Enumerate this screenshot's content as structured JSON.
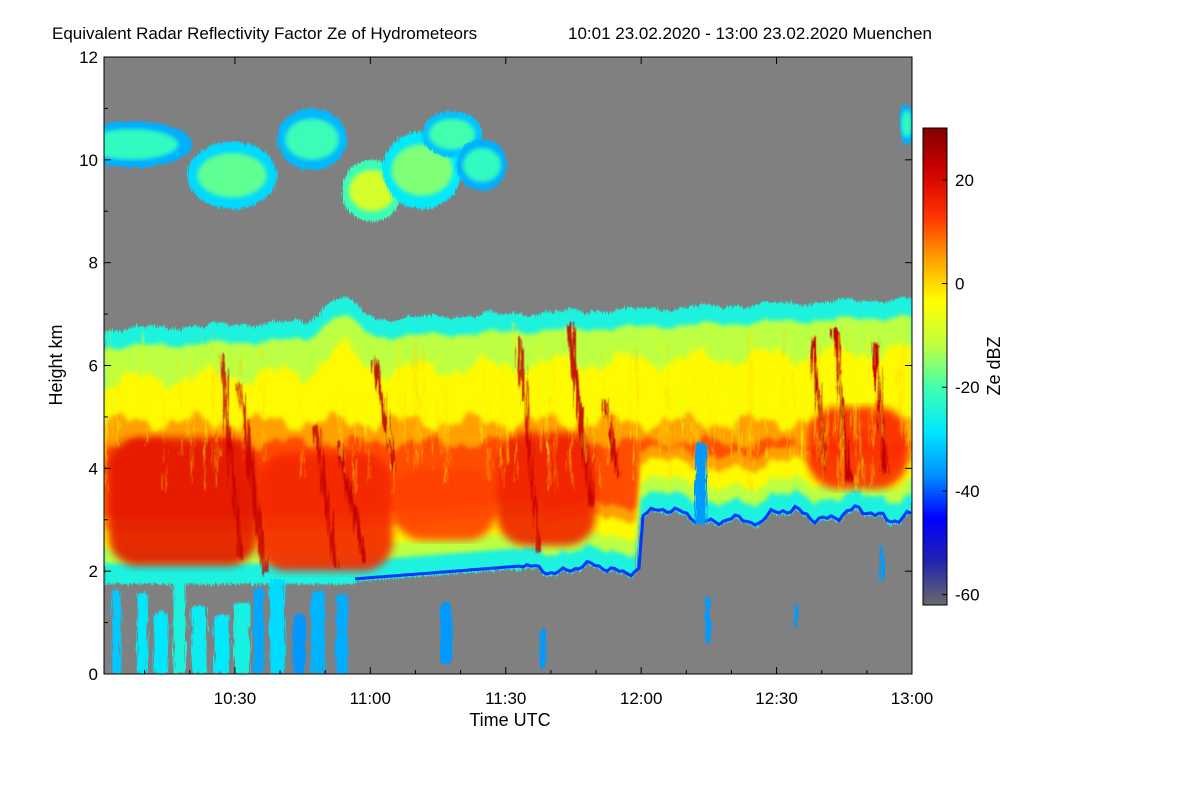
{
  "chart_data": {
    "type": "heatmap",
    "title": "Equivalent Radar Reflectivity Factor Ze of Hydrometeors",
    "subtitle": "10:01 23.02.2020 - 13:00 23.02.2020 Muenchen",
    "xlabel": "Time UTC",
    "ylabel": "Height km",
    "colorbar_label": "Ze dBZ",
    "xlim": [
      "10:01",
      "13:00"
    ],
    "ylim": [
      0,
      12
    ],
    "x_ticks": [
      "10:30",
      "11:00",
      "11:30",
      "12:00",
      "12:30",
      "13:00"
    ],
    "y_ticks": [
      0,
      2,
      4,
      6,
      8,
      10,
      12
    ],
    "colorbar_ticks": [
      20,
      0,
      -20,
      -40,
      -60
    ],
    "colorbar_range": [
      -62,
      30
    ],
    "background_color": "#808080",
    "colormap": [
      "#6a6a6a",
      "#2222b0",
      "#0000ff",
      "#0090ff",
      "#00e8ff",
      "#40ffb0",
      "#c0ff40",
      "#ffff00",
      "#ffa000",
      "#ff3000",
      "#d00000",
      "#800000"
    ],
    "grid": false,
    "features": [
      {
        "name": "main-precipitation-layer",
        "x": [
          "10:01",
          "13:00"
        ],
        "y_base": [
          0,
          3.5
        ],
        "y_top": [
          6.7,
          7.3
        ],
        "ze_range": [
          -40,
          20
        ]
      },
      {
        "name": "upper-cirrus-band-1",
        "x": [
          "10:05",
          "11:30"
        ],
        "y": [
          8.2,
          11.2
        ],
        "ze_range": [
          -30,
          -5
        ]
      },
      {
        "name": "upper-cirrus-band-2",
        "x": [
          "12:57",
          "13:00"
        ],
        "y": [
          9.9,
          11.5
        ],
        "ze_range": [
          -30,
          -20
        ]
      },
      {
        "name": "fall-streaks",
        "x": [
          "10:25",
          "12:50"
        ],
        "y": [
          2,
          6.5
        ],
        "ze_range": [
          10,
          25
        ]
      },
      {
        "name": "lower-level-echoes",
        "x": [
          "10:01",
          "11:20"
        ],
        "y": [
          0,
          2
        ],
        "ze_range": [
          -45,
          -20
        ]
      }
    ]
  }
}
